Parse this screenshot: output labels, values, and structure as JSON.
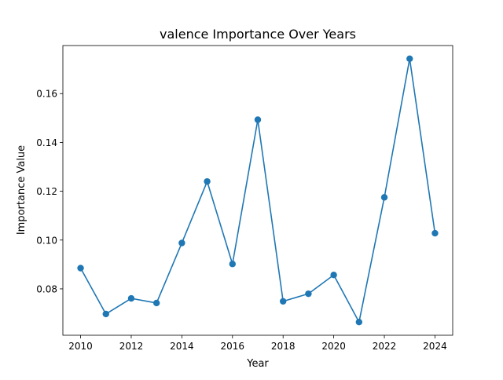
{
  "chart_data": {
    "type": "line",
    "title": "valence Importance Over Years",
    "xlabel": "Year",
    "ylabel": "Importance Value",
    "x": [
      2010,
      2011,
      2012,
      2013,
      2014,
      2015,
      2016,
      2017,
      2018,
      2019,
      2020,
      2021,
      2022,
      2023,
      2024
    ],
    "series": [
      {
        "values": [
          0.0885,
          0.0697,
          0.0761,
          0.0742,
          0.0988,
          0.124,
          0.0902,
          0.1493,
          0.0749,
          0.078,
          0.0857,
          0.0664,
          0.1175,
          0.1743,
          0.1028
        ],
        "color": "#1f77b4",
        "marker": "circle"
      }
    ],
    "xlim": [
      2009.3,
      2024.7
    ],
    "ylim": [
      0.061,
      0.1797
    ],
    "xticks": [
      2010,
      2012,
      2014,
      2016,
      2018,
      2020,
      2022,
      2024
    ],
    "xtick_labels": [
      "2010",
      "2012",
      "2014",
      "2016",
      "2018",
      "2020",
      "2022",
      "2024"
    ],
    "yticks": [
      0.08,
      0.1,
      0.12,
      0.14,
      0.16
    ],
    "ytick_labels": [
      "0.08",
      "0.10",
      "0.12",
      "0.14",
      "0.16"
    ],
    "grid": false,
    "legend": false
  }
}
